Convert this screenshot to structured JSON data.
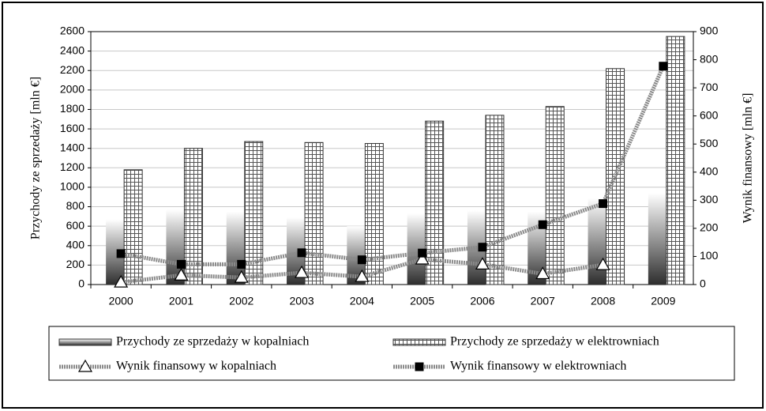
{
  "chart_data": {
    "type": "bar-line",
    "y_label": "Przychody ze sprzedaży [mln €]",
    "y2_label": "Wynik finansowy [mln €]",
    "categories": [
      "2000",
      "2001",
      "2002",
      "2003",
      "2004",
      "2005",
      "2006",
      "2007",
      "2008",
      "2009"
    ],
    "series": [
      {
        "name": "Przychody ze sprzedaży w kopalniach",
        "type": "bar",
        "style": "gradient",
        "color": "#3a3a3a",
        "values": [
          670,
          770,
          750,
          690,
          600,
          730,
          760,
          750,
          890,
          940
        ]
      },
      {
        "name": "Przychody ze sprzedaży w elektrowniach",
        "type": "bar",
        "style": "grid",
        "color": "#555555",
        "values": [
          1180,
          1400,
          1470,
          1460,
          1450,
          1680,
          1740,
          1830,
          2220,
          2550
        ]
      },
      {
        "name": "Wynik finansowy w kopalniach",
        "type": "line",
        "axis": "y2",
        "marker": "triangle",
        "color": "#8a8a8a",
        "values": [
          8,
          33,
          25,
          42,
          28,
          90,
          72,
          38,
          70,
          null
        ]
      },
      {
        "name": "Wynik finansowy w elektrowniach",
        "type": "line",
        "axis": "y2",
        "marker": "square",
        "color": "#8a8a8a",
        "values": [
          110,
          72,
          72,
          113,
          88,
          112,
          133,
          213,
          288,
          777
        ]
      }
    ],
    "ylim": [
      0,
      2600
    ],
    "yticks": [
      0,
      200,
      400,
      600,
      800,
      1000,
      1200,
      1400,
      1600,
      1800,
      2000,
      2200,
      2400,
      2600
    ],
    "y2lim": [
      0,
      900
    ],
    "y2ticks": [
      0,
      100,
      200,
      300,
      400,
      500,
      600,
      700,
      800,
      900
    ],
    "grid": true
  }
}
